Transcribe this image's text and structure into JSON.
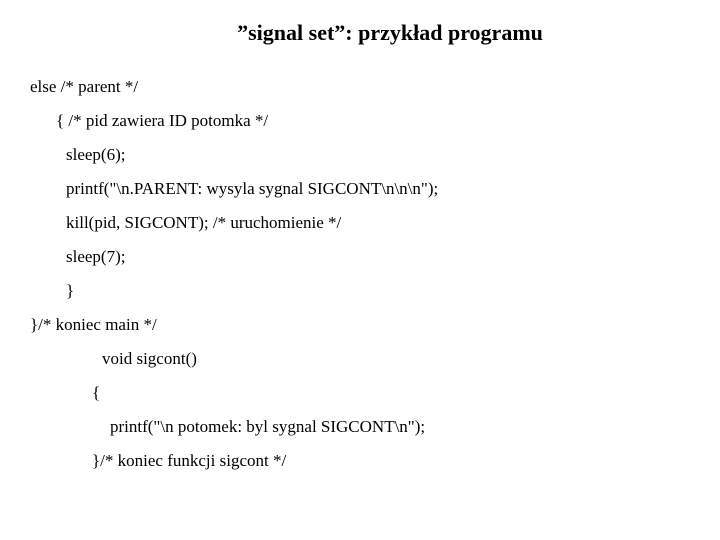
{
  "title": "”signal set”: przykład programu",
  "code": {
    "line1": "else /* parent */",
    "line2": "{  /* pid  zawiera ID  potomka */",
    "line3": "sleep(6);",
    "line4": "printf(\"\\n.PARENT: wysyla sygnal SIGCONT\\n\\n\\n\");",
    "line5": "kill(pid, SIGCONT); /* uruchomienie */",
    "line6": "sleep(7);",
    "line7": "}",
    "line8": "}/* koniec  main */",
    "line9": "void sigcont()",
    "line10": "{",
    "line11": "printf(\"\\n potomek: byl sygnal SIGCONT\\n\");",
    "line12": "}/*  koniec  funkcji   sigcont          */"
  },
  "style": {
    "background_color": "#ffffff",
    "text_color": "#000000",
    "title_fontsize": 22,
    "code_fontsize": 17,
    "font_family": "Times New Roman"
  }
}
